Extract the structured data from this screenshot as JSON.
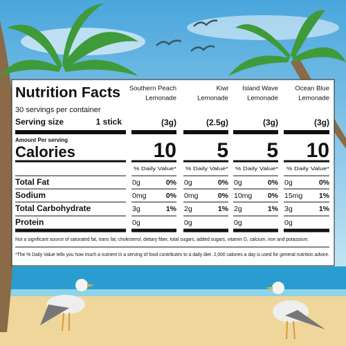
{
  "title": "Nutrition Facts",
  "servings": "30 servings per container",
  "serving_size_label": "Serving size",
  "serving_size": "1 stick",
  "amount_per_serving": "Amount Per serving",
  "calories_label": "Calories",
  "columns": [
    {
      "name": [
        "Southern Peach",
        "Lemonade"
      ],
      "serving": "(3g)",
      "calories": 10,
      "daily_value_header": "% Daily Value*"
    },
    {
      "name": [
        "Kiwi",
        "Lemonade"
      ],
      "serving": "(2.5g)",
      "calories": 5,
      "daily_value_header": "% Daily Value*"
    },
    {
      "name": [
        "Island Wave",
        "Lemonade"
      ],
      "serving": "(3g)",
      "calories": 5,
      "daily_value_header": "% Daily Value*"
    },
    {
      "name": [
        "Ocean Blue",
        "Lemonade"
      ],
      "serving": "(3g)",
      "calories": 10,
      "daily_value_header": "% Daily Value*"
    }
  ],
  "nutrients": [
    {
      "name": "Total Fat",
      "values": [
        {
          "amount": "0g",
          "dv": "0%"
        },
        {
          "amount": "0g",
          "dv": "0%"
        },
        {
          "amount": "0g",
          "dv": "0%"
        },
        {
          "amount": "0g",
          "dv": "0%"
        }
      ]
    },
    {
      "name": "Sodium",
      "values": [
        {
          "amount": "0mg",
          "dv": "0%"
        },
        {
          "amount": "0mg",
          "dv": "0%"
        },
        {
          "amount": "10mg",
          "dv": "0%"
        },
        {
          "amount": "15mg",
          "dv": "1%"
        }
      ]
    },
    {
      "name": "Total Carbohydrate",
      "values": [
        {
          "amount": "3g",
          "dv": "1%"
        },
        {
          "amount": "2g",
          "dv": "1%"
        },
        {
          "amount": "2g",
          "dv": "1%"
        },
        {
          "amount": "3g",
          "dv": "1%"
        }
      ]
    },
    {
      "name": "Protein",
      "values": [
        {
          "amount": "0g"
        },
        {
          "amount": "0g"
        },
        {
          "amount": "0g"
        },
        {
          "amount": "0g"
        }
      ]
    }
  ],
  "footnotes": [
    "Not a significant source of saturated fat, trans fat, cholesterol, dietary fiber, total sugars, added sugars, vitamin D, calcium, iron and potassium.",
    "*The % Daily Value tells you how much a nutrient in a serving of food contributes to a daily diet. 2,000 calories a day is used for general nutrition advice."
  ]
}
